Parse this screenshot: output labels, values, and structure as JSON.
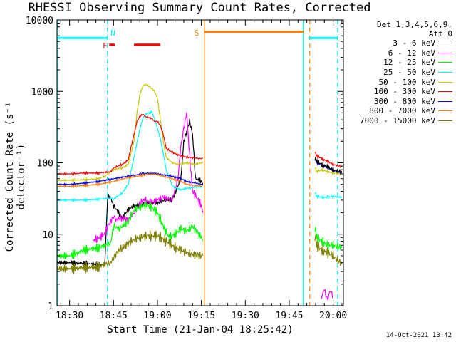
{
  "chart_data": {
    "type": "line",
    "title": "RHESSI Observing Summary Count Rates, Corrected",
    "xlabel": "Start Time (21-Jan-04 18:25:42)",
    "ylabel": "Corrected Count Rate (s⁻¹ detector⁻¹)",
    "yscale": "log",
    "ylim": [
      1,
      10000
    ],
    "y_ticks": [
      "1",
      "10",
      "100",
      "1000",
      "10000"
    ],
    "x_ticks": [
      "18:30",
      "18:45",
      "19:00",
      "19:15",
      "19:30",
      "19:45",
      "20:00"
    ],
    "xlim_minutes": [
      25.7,
      123.5
    ],
    "legend_header": [
      "Det 1,3,4,5,6,9,",
      "Att 0"
    ],
    "series": [
      {
        "name": "3 - 6 keV",
        "color": "#000000",
        "x": [
          25.7,
          30,
          35,
          40,
          42,
          43,
          44,
          45,
          46,
          48,
          50,
          52,
          55,
          58,
          60,
          62,
          65,
          68,
          69,
          71,
          72,
          73,
          75,
          75.5
        ],
        "y": [
          4,
          4,
          3.9,
          3.8,
          3.7,
          34,
          33,
          25,
          22,
          17,
          22,
          25,
          26,
          28,
          27,
          30,
          30,
          60,
          200,
          380,
          250,
          60,
          55,
          50
        ]
      },
      {
        "name": "6 - 12 keV",
        "color": "#ff00ff",
        "x": [
          38,
          40,
          42,
          43,
          44,
          45,
          46,
          48,
          50,
          52,
          55,
          58,
          60,
          62,
          65,
          67,
          68,
          69,
          70,
          71,
          72,
          73,
          75,
          75.5
        ],
        "y": [
          8,
          9,
          10,
          13,
          15,
          18,
          16,
          17,
          16,
          20,
          30,
          28,
          30,
          33,
          30,
          60,
          170,
          300,
          500,
          120,
          40,
          35,
          25,
          20
        ]
      },
      {
        "name": "12 - 25 keV",
        "color": "#00ff00",
        "x": [
          25.7,
          30,
          35,
          40,
          42,
          44,
          45,
          47,
          50,
          52,
          54,
          56,
          58,
          60,
          62,
          64,
          66,
          68,
          70,
          72,
          74,
          75,
          75.5
        ],
        "y": [
          5,
          5,
          6,
          6.5,
          7,
          7.5,
          13,
          12,
          15,
          22,
          24,
          26,
          24,
          20,
          13,
          9,
          10,
          12,
          11,
          13,
          10,
          9,
          8
        ]
      },
      {
        "name": "25 - 50 keV",
        "color": "#00ffff",
        "x": [
          25.7,
          30,
          35,
          40,
          44,
          45,
          48,
          50,
          52,
          54,
          55,
          56,
          58,
          59,
          61,
          63,
          65,
          66,
          68,
          70,
          73,
          75,
          75.5
        ],
        "y": [
          30,
          30,
          30,
          31,
          32,
          31,
          38,
          50,
          120,
          300,
          420,
          480,
          520,
          420,
          220,
          80,
          48,
          45,
          42,
          44,
          46,
          46,
          45
        ]
      },
      {
        "name": "50 - 100 keV",
        "color": "#c8c800",
        "x": [
          25.7,
          30,
          35,
          40,
          42,
          45,
          48,
          50,
          52,
          53,
          54,
          55,
          56,
          57,
          58,
          59,
          60,
          61,
          62,
          63,
          65,
          67,
          70,
          73,
          75,
          75.5
        ],
        "y": [
          57,
          57,
          58,
          60,
          65,
          80,
          85,
          95,
          200,
          500,
          900,
          1200,
          1250,
          1200,
          1100,
          1000,
          800,
          400,
          200,
          120,
          100,
          95,
          100,
          95,
          100,
          100
        ]
      },
      {
        "name": "100 - 300 keV",
        "color": "#ff0000",
        "x": [
          25.7,
          30,
          35,
          40,
          44,
          45,
          48,
          50,
          52,
          53,
          54,
          55,
          56,
          58,
          59,
          60,
          61,
          62,
          63,
          65,
          68,
          70,
          72,
          74,
          75.5
        ],
        "y": [
          70,
          70,
          72,
          72,
          75,
          85,
          95,
          110,
          250,
          380,
          450,
          480,
          440,
          420,
          380,
          380,
          330,
          250,
          160,
          140,
          125,
          120,
          118,
          115,
          115
        ]
      },
      {
        "name": "300 - 800 keV",
        "color": "#0000ff",
        "x": [
          25.7,
          30,
          35,
          40,
          45,
          50,
          55,
          58,
          60,
          62,
          65,
          68,
          70,
          73,
          75,
          75.5
        ],
        "y": [
          50,
          50,
          52,
          55,
          60,
          65,
          70,
          72,
          70,
          68,
          65,
          60,
          55,
          52,
          50,
          49
        ]
      },
      {
        "name": "800 - 7000 keV",
        "color": "#ff8000",
        "x": [
          25.7,
          30,
          35,
          40,
          45,
          50,
          55,
          58,
          60,
          62,
          65,
          68,
          70,
          73,
          75,
          75.5
        ],
        "y": [
          47,
          47,
          48,
          50,
          55,
          62,
          67,
          70,
          68,
          65,
          60,
          55,
          50,
          48,
          47,
          47
        ]
      },
      {
        "name": "7000 - 15000 keV",
        "color": "#808000",
        "x": [
          25.7,
          30,
          35,
          40,
          42,
          44,
          46,
          48,
          50,
          52,
          54,
          56,
          58,
          60,
          62,
          64,
          66,
          68,
          70,
          72,
          74,
          75.5
        ],
        "y": [
          3.3,
          3.3,
          3.4,
          3.5,
          3.8,
          4,
          5.5,
          6.5,
          7.5,
          8.5,
          9,
          9.5,
          9.5,
          9.5,
          8.5,
          7.5,
          6.5,
          6,
          5.5,
          5.2,
          5,
          5
        ]
      }
    ],
    "series_after_gap": [
      {
        "name": "100 - 300 keV",
        "color": "#ff0000",
        "x": [
          113.8,
          114.5,
          116,
          118,
          120,
          123
        ],
        "y": [
          140,
          125,
          115,
          105,
          95,
          88
        ]
      },
      {
        "name": "50 - 100 keV",
        "color": "#c8c800",
        "x": [
          113.8,
          114.5,
          116,
          118,
          120,
          123
        ],
        "y": [
          85,
          75,
          80,
          75,
          72,
          70
        ]
      },
      {
        "name": "300 - 800 keV",
        "color": "#0000ff",
        "x": [
          113.8,
          114.5,
          116,
          118,
          120,
          123
        ],
        "y": [
          110,
          100,
          92,
          85,
          78,
          72
        ]
      },
      {
        "name": "3 - 6 keV",
        "color": "#000000",
        "x": [
          113.8,
          114.5,
          116,
          118,
          120,
          123
        ],
        "y": [
          115,
          105,
          95,
          88,
          80,
          74
        ]
      },
      {
        "name": "25 - 50 keV",
        "color": "#00ffff",
        "x": [
          113.8,
          114.5,
          116,
          118,
          120,
          123
        ],
        "y": [
          38,
          34,
          33,
          33,
          34,
          33
        ]
      },
      {
        "name": "12 - 25 keV",
        "color": "#00ff00",
        "x": [
          113.8,
          114.5,
          116,
          118,
          120,
          123
        ],
        "y": [
          12,
          9,
          8,
          7,
          7,
          6.5
        ]
      },
      {
        "name": "7000 - 15000 keV",
        "color": "#808000",
        "x": [
          113.8,
          114.5,
          116,
          118,
          120,
          123
        ],
        "y": [
          9,
          7,
          6,
          5.5,
          5,
          3.8
        ]
      },
      {
        "name": "6 - 12 keV",
        "color": "#ff00ff",
        "x": [
          116,
          117,
          118,
          119,
          120
        ],
        "y": [
          1.3,
          1.7,
          1.2,
          1.6,
          1.4
        ]
      }
    ],
    "annotations": {
      "flags": [
        {
          "label": "F",
          "color": "#ff0000",
          "y": 4500,
          "segments": [
            [
              43.5,
              45.5
            ],
            [
              52,
              61
            ]
          ]
        },
        {
          "label": "N",
          "color": "#00ffff",
          "y": 5600,
          "segments": [
            [
              25.7,
              43
            ],
            [
              111.5,
              121.5
            ]
          ]
        },
        {
          "label": "S",
          "color": "#ff8000",
          "y": 6800,
          "segments": [
            [
              76,
              110
            ]
          ]
        }
      ],
      "solid_lines": [
        {
          "color": "#00ffff",
          "x": 25.8
        },
        {
          "color": "#ff8000",
          "x": 76
        },
        {
          "color": "#00ffff",
          "x": 109.8
        }
      ],
      "dashed_lines": [
        {
          "color": "#00ffff",
          "x": 42.9
        },
        {
          "color": "#ff8000",
          "x": 112
        },
        {
          "color": "#00ffff",
          "x": 121.5
        }
      ]
    }
  },
  "footer": {
    "timestamp": "14-Oct-2021 13:42"
  }
}
